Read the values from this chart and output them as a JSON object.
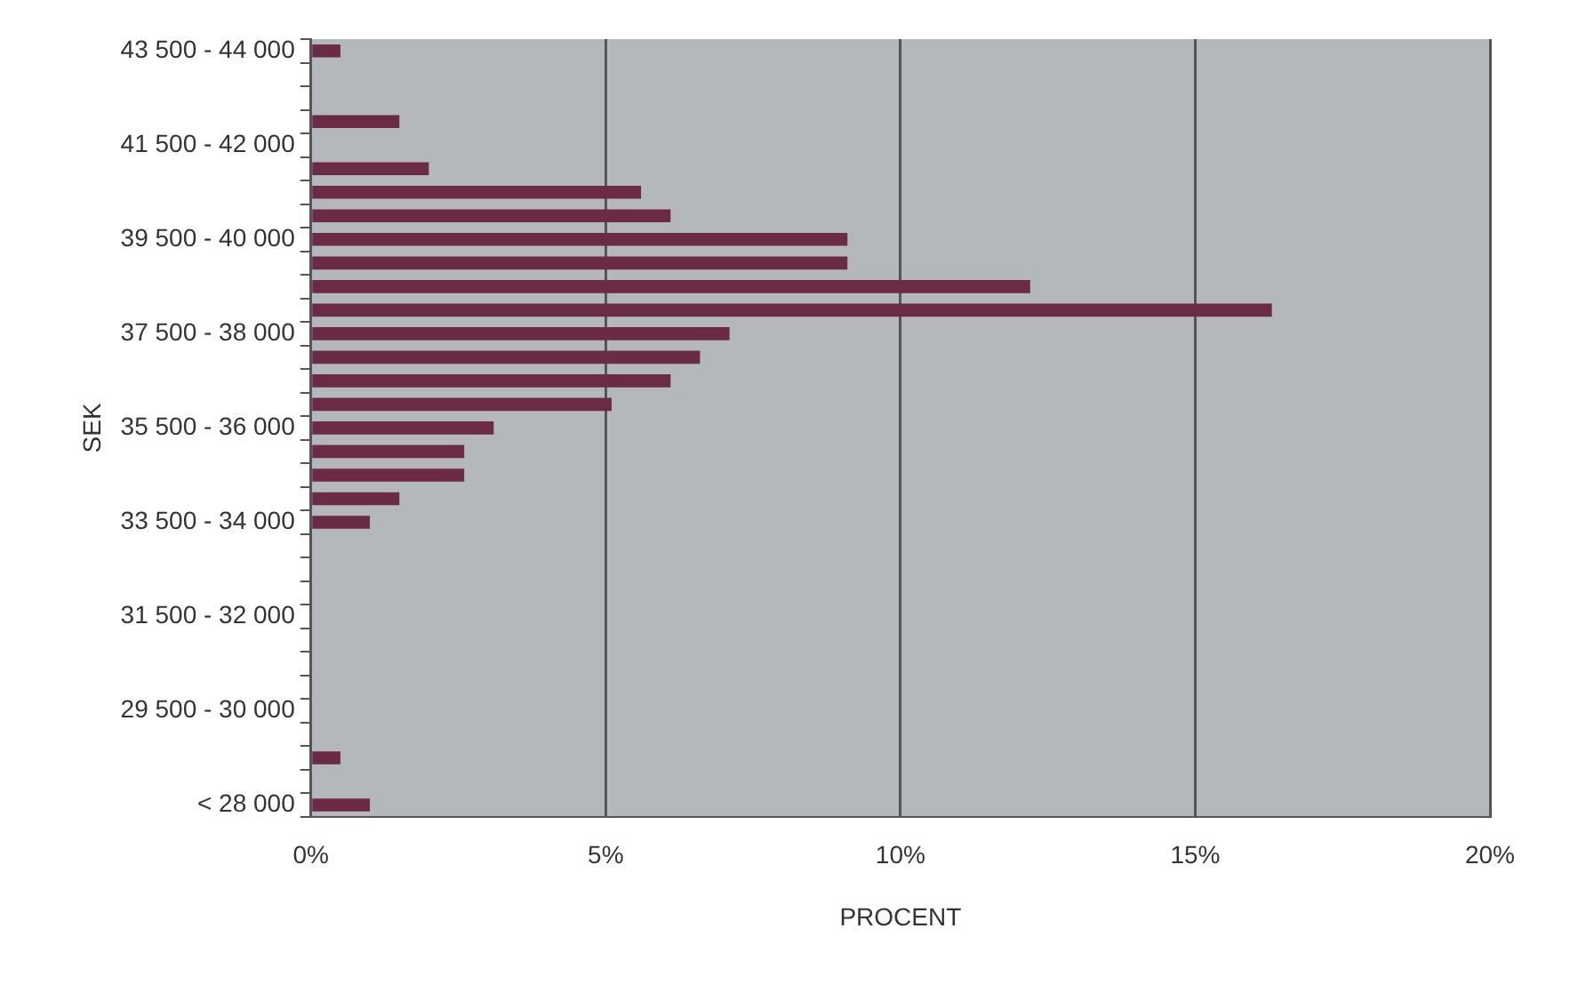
{
  "chart_data": {
    "type": "bar",
    "orientation": "horizontal",
    "xlabel": "PROCENT",
    "ylabel": "SEK",
    "categories": [
      "43 500 - 44 000",
      null,
      null,
      null,
      "41 500 - 42 000",
      null,
      null,
      null,
      "39 500 - 40 000",
      null,
      null,
      null,
      "37 500 - 38 000",
      null,
      null,
      null,
      "35 500 - 36 000",
      null,
      null,
      null,
      "33 500 - 34 000",
      null,
      null,
      null,
      "31 500 - 32 000",
      null,
      null,
      null,
      "29 500 - 30 000",
      null,
      null,
      null,
      "< 28 000"
    ],
    "values": [
      0.5,
      0,
      0,
      1.5,
      0,
      2.0,
      5.6,
      6.1,
      9.1,
      9.1,
      12.2,
      16.3,
      7.1,
      6.6,
      6.1,
      5.1,
      3.1,
      2.6,
      2.6,
      1.5,
      1.0,
      0,
      0,
      0,
      0,
      0,
      0,
      0,
      0,
      0,
      0.5,
      0,
      1.0
    ],
    "color": "#6b2a45",
    "xlim": [
      0,
      20
    ],
    "xticks": [
      {
        "value": 0,
        "label": "0%"
      },
      {
        "value": 5,
        "label": "5%"
      },
      {
        "value": 10,
        "label": "10%"
      },
      {
        "value": 15,
        "label": "15%"
      },
      {
        "value": 20,
        "label": "20%"
      }
    ],
    "grid": "x",
    "legend": false
  }
}
